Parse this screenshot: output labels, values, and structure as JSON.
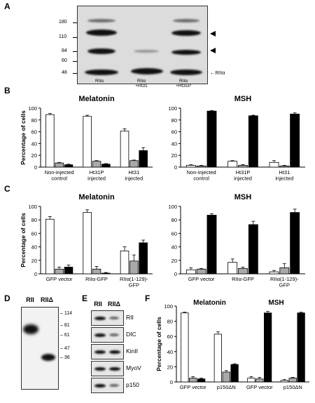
{
  "panels": {
    "A": {
      "label": "A",
      "mw_markers": [
        "180",
        "110",
        "84",
        "60",
        "48"
      ],
      "lanes": [
        "RIIα",
        "RIIα\n+Ht31",
        "RIIα\n+Ht31P"
      ],
      "band_label": "RIIα"
    },
    "B": {
      "label": "B"
    },
    "C": {
      "label": "C"
    },
    "D": {
      "label": "D",
      "lanes": [
        "RII",
        "RIIΔ"
      ],
      "mw_markers": [
        "114",
        "81",
        "61",
        "47",
        "36"
      ]
    },
    "E": {
      "label": "E",
      "lanes": [
        "RII",
        "RIIΔ"
      ],
      "proteins": [
        "RII",
        "DIC",
        "KinII",
        "MyoV",
        "p150"
      ]
    },
    "F": {
      "label": "F"
    }
  },
  "chart_data": [
    {
      "id": "B-melatonin",
      "type": "bar",
      "title": "Melatonin",
      "ylabel": "Percentage of cells",
      "ylim": [
        0,
        100
      ],
      "yticks": [
        0,
        20,
        40,
        60,
        80,
        100
      ],
      "categories": [
        "Non-injected\ncontrol",
        "Ht31P\ninjected",
        "Ht31\ninjected"
      ],
      "colors": [
        "#ffffff",
        "#a9a9a9",
        "#000000"
      ],
      "series": [
        {
          "values": [
            89,
            86,
            61
          ],
          "err": [
            2,
            2,
            4
          ]
        },
        {
          "values": [
            7,
            10,
            11
          ],
          "err": [
            1,
            1,
            1
          ]
        },
        {
          "values": [
            4,
            5,
            28
          ],
          "err": [
            1,
            1,
            5
          ]
        }
      ]
    },
    {
      "id": "B-msh",
      "type": "bar",
      "title": "MSH",
      "ylabel": "",
      "ylim": [
        0,
        100
      ],
      "yticks": [
        0,
        20,
        40,
        60,
        80,
        100
      ],
      "categories": [
        "Non-injected\ncontrol",
        "Ht31P\ninjected",
        "Ht31\ninjected"
      ],
      "colors": [
        "#ffffff",
        "#a9a9a9",
        "#000000"
      ],
      "series": [
        {
          "values": [
            3,
            10,
            8
          ],
          "err": [
            1,
            1,
            3
          ]
        },
        {
          "values": [
            2,
            3,
            2
          ],
          "err": [
            1,
            1,
            1
          ]
        },
        {
          "values": [
            95,
            87,
            90
          ],
          "err": [
            1,
            1,
            2
          ]
        }
      ]
    },
    {
      "id": "C-melatonin",
      "type": "bar",
      "title": "Melatonin",
      "ylabel": "Percentage of cells",
      "ylim": [
        0,
        100
      ],
      "yticks": [
        0,
        20,
        40,
        60,
        80,
        100
      ],
      "categories": [
        "GFP vector",
        "RIIα-GFP",
        "RIIα(1-129)-\nGFP"
      ],
      "colors": [
        "#ffffff",
        "#a9a9a9",
        "#000000"
      ],
      "series": [
        {
          "values": [
            81,
            91,
            34
          ],
          "err": [
            4,
            4,
            6
          ]
        },
        {
          "values": [
            7,
            7,
            19
          ],
          "err": [
            3,
            4,
            9
          ]
        },
        {
          "values": [
            10,
            1,
            46
          ],
          "err": [
            3,
            1,
            4
          ]
        }
      ]
    },
    {
      "id": "C-msh",
      "type": "bar",
      "title": "MSH",
      "ylabel": "",
      "ylim": [
        0,
        100
      ],
      "yticks": [
        0,
        20,
        40,
        60,
        80,
        100
      ],
      "categories": [
        "GFP vector",
        "RIIα-GFP",
        "RIIα(1-129)-\nGFP"
      ],
      "colors": [
        "#ffffff",
        "#a9a9a9",
        "#000000"
      ],
      "series": [
        {
          "values": [
            6,
            17,
            3
          ],
          "err": [
            3,
            5,
            2
          ]
        },
        {
          "values": [
            7,
            8,
            9
          ],
          "err": [
            1,
            2,
            6
          ]
        },
        {
          "values": [
            87,
            73,
            91
          ],
          "err": [
            2,
            5,
            5
          ]
        }
      ]
    },
    {
      "id": "F",
      "type": "bar",
      "title": "",
      "group_titles": [
        "Melatonin",
        "MSH"
      ],
      "ylabel": "Percentage of cells",
      "ylim": [
        0,
        100
      ],
      "yticks": [
        0,
        20,
        40,
        60,
        80,
        100
      ],
      "categories": [
        "GFP vector",
        "p150ΔN",
        "GFP vector",
        "p150ΔN"
      ],
      "colors": [
        "#ffffff",
        "#a9a9a9",
        "#000000"
      ],
      "series": [
        {
          "values": [
            91,
            63,
            5,
            2
          ],
          "err": [
            1,
            3,
            2,
            1
          ]
        },
        {
          "values": [
            5,
            13,
            4,
            5
          ],
          "err": [
            2,
            2,
            2,
            1
          ]
        },
        {
          "values": [
            4,
            23,
            91,
            91
          ],
          "err": [
            1,
            1,
            2,
            1
          ]
        }
      ]
    }
  ]
}
